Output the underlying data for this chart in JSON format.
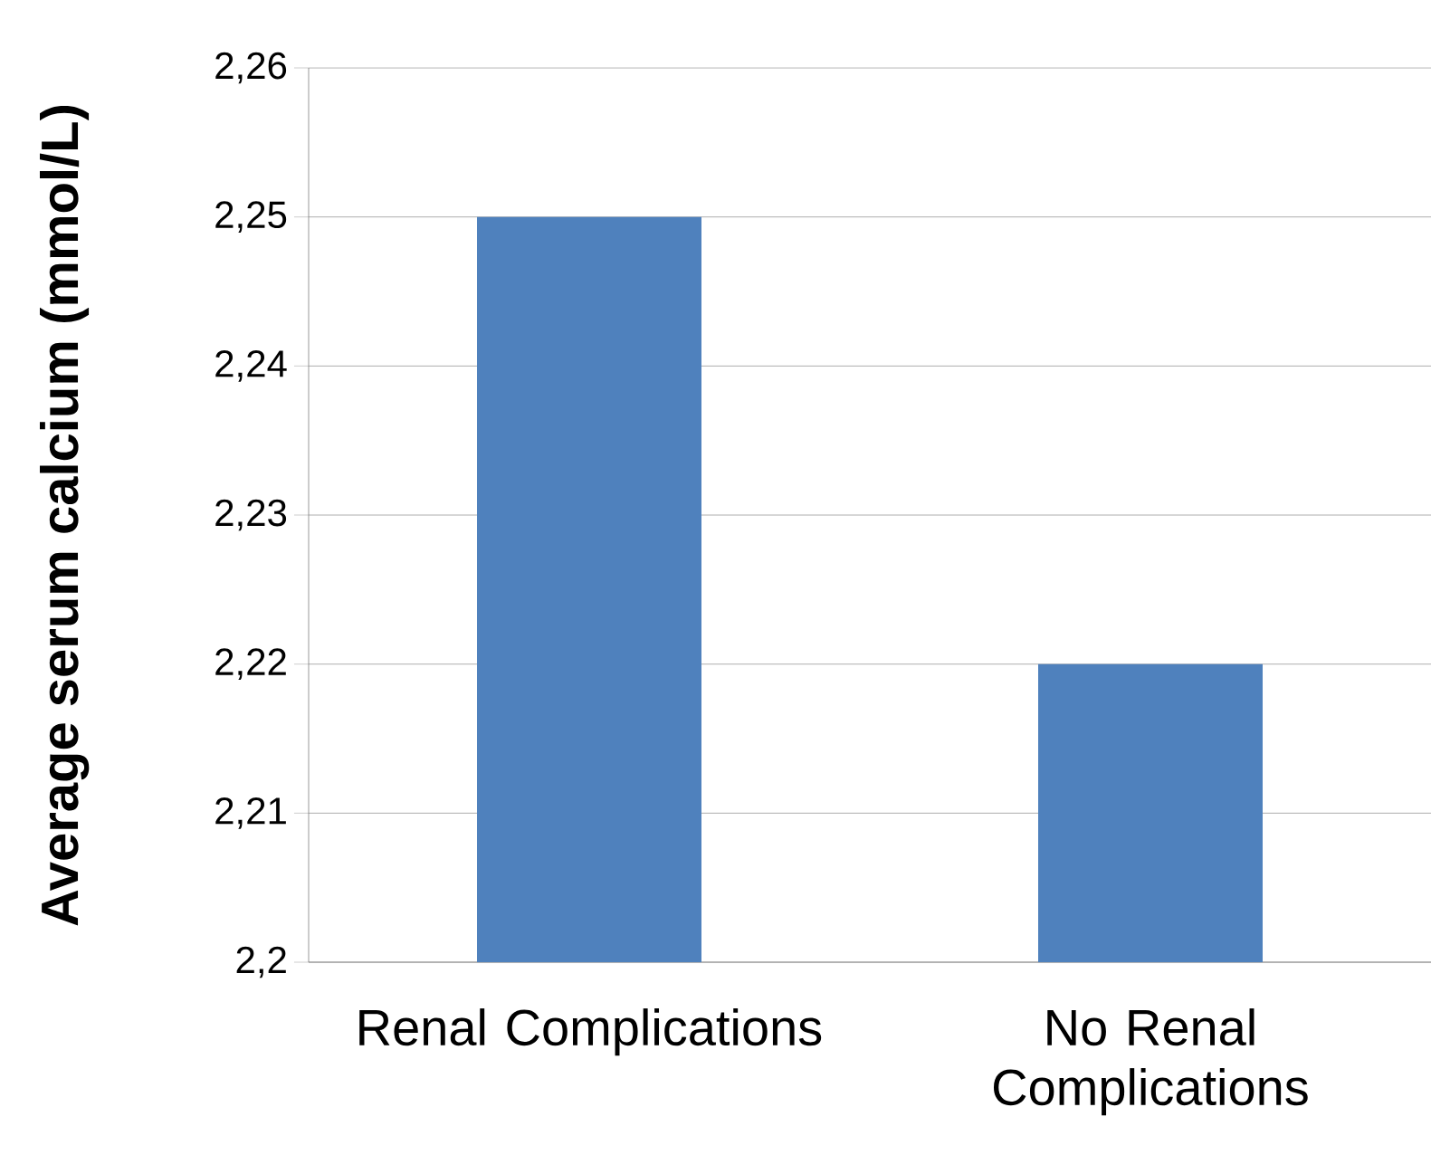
{
  "chart_data": {
    "type": "bar",
    "ylabel": "Average serum calcium (mmol/L)",
    "categories": [
      "Renal Complications",
      "No Renal Complications"
    ],
    "values": [
      2.25,
      2.22
    ],
    "color": "#4f81bd",
    "ylim": [
      2.2,
      2.26
    ],
    "yticks": [
      {
        "value": 2.2,
        "label": "2,2"
      },
      {
        "value": 2.21,
        "label": "2,21"
      },
      {
        "value": 2.22,
        "label": "2,22"
      },
      {
        "value": 2.23,
        "label": "2,23"
      },
      {
        "value": 2.24,
        "label": "2,24"
      },
      {
        "value": 2.25,
        "label": "2,25"
      },
      {
        "value": 2.26,
        "label": "2,26"
      }
    ],
    "grid": "y",
    "legend": false
  }
}
